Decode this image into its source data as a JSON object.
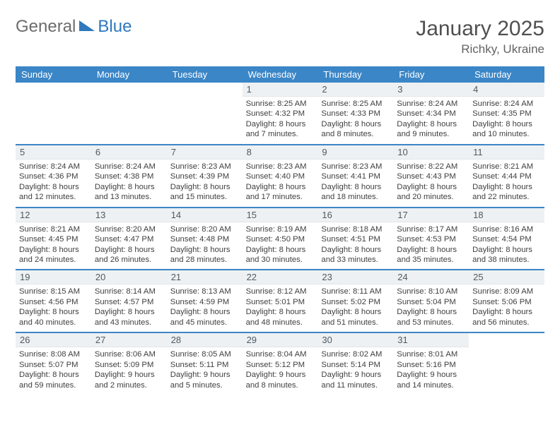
{
  "brand": {
    "part1": "General",
    "part2": "Blue"
  },
  "title": "January 2025",
  "location": "Richky, Ukraine",
  "colors": {
    "accent": "#3b86c7",
    "daynum_bg": "#eef1f3",
    "text": "#3f3f3f",
    "title": "#505050",
    "location": "#636363"
  },
  "dayHeaders": [
    "Sunday",
    "Monday",
    "Tuesday",
    "Wednesday",
    "Thursday",
    "Friday",
    "Saturday"
  ],
  "weeks": [
    [
      {
        "n": "",
        "sunrise": "",
        "sunset": "",
        "daylight": ""
      },
      {
        "n": "",
        "sunrise": "",
        "sunset": "",
        "daylight": ""
      },
      {
        "n": "",
        "sunrise": "",
        "sunset": "",
        "daylight": ""
      },
      {
        "n": "1",
        "sunrise": "Sunrise: 8:25 AM",
        "sunset": "Sunset: 4:32 PM",
        "daylight": "Daylight: 8 hours and 7 minutes."
      },
      {
        "n": "2",
        "sunrise": "Sunrise: 8:25 AM",
        "sunset": "Sunset: 4:33 PM",
        "daylight": "Daylight: 8 hours and 8 minutes."
      },
      {
        "n": "3",
        "sunrise": "Sunrise: 8:24 AM",
        "sunset": "Sunset: 4:34 PM",
        "daylight": "Daylight: 8 hours and 9 minutes."
      },
      {
        "n": "4",
        "sunrise": "Sunrise: 8:24 AM",
        "sunset": "Sunset: 4:35 PM",
        "daylight": "Daylight: 8 hours and 10 minutes."
      }
    ],
    [
      {
        "n": "5",
        "sunrise": "Sunrise: 8:24 AM",
        "sunset": "Sunset: 4:36 PM",
        "daylight": "Daylight: 8 hours and 12 minutes."
      },
      {
        "n": "6",
        "sunrise": "Sunrise: 8:24 AM",
        "sunset": "Sunset: 4:38 PM",
        "daylight": "Daylight: 8 hours and 13 minutes."
      },
      {
        "n": "7",
        "sunrise": "Sunrise: 8:23 AM",
        "sunset": "Sunset: 4:39 PM",
        "daylight": "Daylight: 8 hours and 15 minutes."
      },
      {
        "n": "8",
        "sunrise": "Sunrise: 8:23 AM",
        "sunset": "Sunset: 4:40 PM",
        "daylight": "Daylight: 8 hours and 17 minutes."
      },
      {
        "n": "9",
        "sunrise": "Sunrise: 8:23 AM",
        "sunset": "Sunset: 4:41 PM",
        "daylight": "Daylight: 8 hours and 18 minutes."
      },
      {
        "n": "10",
        "sunrise": "Sunrise: 8:22 AM",
        "sunset": "Sunset: 4:43 PM",
        "daylight": "Daylight: 8 hours and 20 minutes."
      },
      {
        "n": "11",
        "sunrise": "Sunrise: 8:21 AM",
        "sunset": "Sunset: 4:44 PM",
        "daylight": "Daylight: 8 hours and 22 minutes."
      }
    ],
    [
      {
        "n": "12",
        "sunrise": "Sunrise: 8:21 AM",
        "sunset": "Sunset: 4:45 PM",
        "daylight": "Daylight: 8 hours and 24 minutes."
      },
      {
        "n": "13",
        "sunrise": "Sunrise: 8:20 AM",
        "sunset": "Sunset: 4:47 PM",
        "daylight": "Daylight: 8 hours and 26 minutes."
      },
      {
        "n": "14",
        "sunrise": "Sunrise: 8:20 AM",
        "sunset": "Sunset: 4:48 PM",
        "daylight": "Daylight: 8 hours and 28 minutes."
      },
      {
        "n": "15",
        "sunrise": "Sunrise: 8:19 AM",
        "sunset": "Sunset: 4:50 PM",
        "daylight": "Daylight: 8 hours and 30 minutes."
      },
      {
        "n": "16",
        "sunrise": "Sunrise: 8:18 AM",
        "sunset": "Sunset: 4:51 PM",
        "daylight": "Daylight: 8 hours and 33 minutes."
      },
      {
        "n": "17",
        "sunrise": "Sunrise: 8:17 AM",
        "sunset": "Sunset: 4:53 PM",
        "daylight": "Daylight: 8 hours and 35 minutes."
      },
      {
        "n": "18",
        "sunrise": "Sunrise: 8:16 AM",
        "sunset": "Sunset: 4:54 PM",
        "daylight": "Daylight: 8 hours and 38 minutes."
      }
    ],
    [
      {
        "n": "19",
        "sunrise": "Sunrise: 8:15 AM",
        "sunset": "Sunset: 4:56 PM",
        "daylight": "Daylight: 8 hours and 40 minutes."
      },
      {
        "n": "20",
        "sunrise": "Sunrise: 8:14 AM",
        "sunset": "Sunset: 4:57 PM",
        "daylight": "Daylight: 8 hours and 43 minutes."
      },
      {
        "n": "21",
        "sunrise": "Sunrise: 8:13 AM",
        "sunset": "Sunset: 4:59 PM",
        "daylight": "Daylight: 8 hours and 45 minutes."
      },
      {
        "n": "22",
        "sunrise": "Sunrise: 8:12 AM",
        "sunset": "Sunset: 5:01 PM",
        "daylight": "Daylight: 8 hours and 48 minutes."
      },
      {
        "n": "23",
        "sunrise": "Sunrise: 8:11 AM",
        "sunset": "Sunset: 5:02 PM",
        "daylight": "Daylight: 8 hours and 51 minutes."
      },
      {
        "n": "24",
        "sunrise": "Sunrise: 8:10 AM",
        "sunset": "Sunset: 5:04 PM",
        "daylight": "Daylight: 8 hours and 53 minutes."
      },
      {
        "n": "25",
        "sunrise": "Sunrise: 8:09 AM",
        "sunset": "Sunset: 5:06 PM",
        "daylight": "Daylight: 8 hours and 56 minutes."
      }
    ],
    [
      {
        "n": "26",
        "sunrise": "Sunrise: 8:08 AM",
        "sunset": "Sunset: 5:07 PM",
        "daylight": "Daylight: 8 hours and 59 minutes."
      },
      {
        "n": "27",
        "sunrise": "Sunrise: 8:06 AM",
        "sunset": "Sunset: 5:09 PM",
        "daylight": "Daylight: 9 hours and 2 minutes."
      },
      {
        "n": "28",
        "sunrise": "Sunrise: 8:05 AM",
        "sunset": "Sunset: 5:11 PM",
        "daylight": "Daylight: 9 hours and 5 minutes."
      },
      {
        "n": "29",
        "sunrise": "Sunrise: 8:04 AM",
        "sunset": "Sunset: 5:12 PM",
        "daylight": "Daylight: 9 hours and 8 minutes."
      },
      {
        "n": "30",
        "sunrise": "Sunrise: 8:02 AM",
        "sunset": "Sunset: 5:14 PM",
        "daylight": "Daylight: 9 hours and 11 minutes."
      },
      {
        "n": "31",
        "sunrise": "Sunrise: 8:01 AM",
        "sunset": "Sunset: 5:16 PM",
        "daylight": "Daylight: 9 hours and 14 minutes."
      },
      {
        "n": "",
        "sunrise": "",
        "sunset": "",
        "daylight": ""
      }
    ]
  ]
}
